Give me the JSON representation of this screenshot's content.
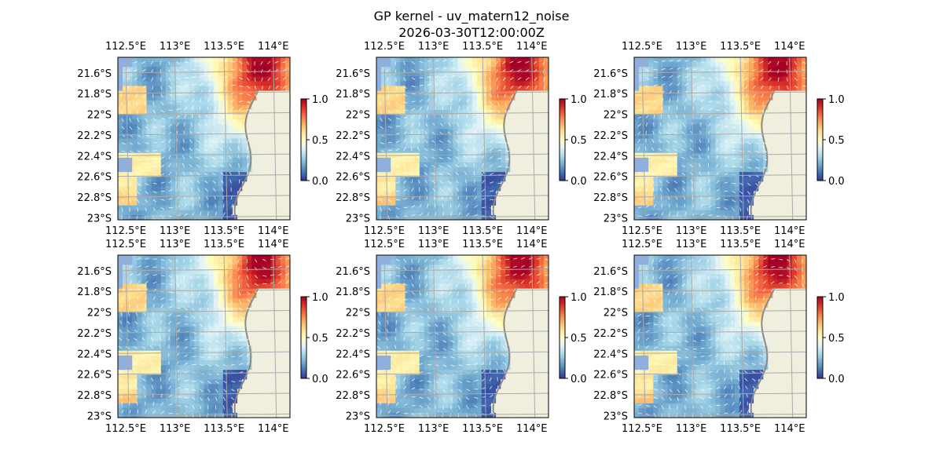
{
  "figure": {
    "title_line1": "GP kernel - uv_matern12_noise",
    "title_line2": "2026-03-30T12:00:00Z"
  },
  "chart_data": {
    "type": "heatmap",
    "panel_count": 6,
    "grid": "2x3",
    "lon_range": [
      112.42,
      114.17
    ],
    "lat_range": [
      -23.02,
      -21.45
    ],
    "lon_ticks": [
      112.5,
      113.0,
      113.5,
      114.0
    ],
    "lat_ticks": [
      -21.6,
      -21.8,
      -22.0,
      -22.2,
      -22.4,
      -22.6,
      -22.8,
      -23.0
    ],
    "lon_tick_labels": [
      "112.5°E",
      "113°E",
      "113.5°E",
      "114°E"
    ],
    "lat_tick_labels": [
      "21.6°S",
      "21.8°S",
      "22°S",
      "22.2°S",
      "22.4°S",
      "22.6°S",
      "22.8°S",
      "23°S"
    ],
    "colorbar": {
      "range": [
        0.0,
        1.0
      ],
      "ticks": [
        0.0,
        0.5,
        1.0
      ],
      "tick_labels": [
        "0.0",
        "0.5",
        "1.0"
      ],
      "colormap": "RdYlBu_r"
    },
    "gridlines": true,
    "vectors": "white quiver arrows of uv velocity",
    "colors": {
      "land": "#f0eedd",
      "masked": "#8fb0de",
      "coastline": "#888888",
      "gridline": "#aaaaaa"
    }
  }
}
